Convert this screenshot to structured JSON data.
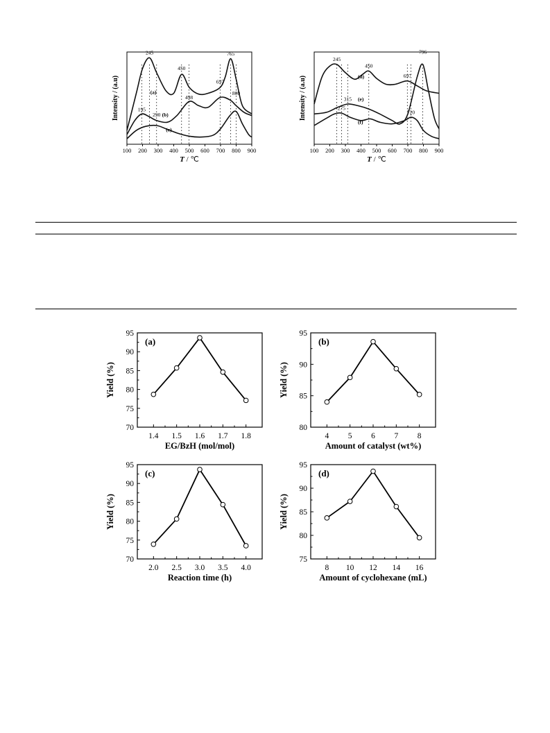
{
  "tpd_panels": [
    {
      "id": "left",
      "ylabel": "Intensity / (a.u)",
      "xlabel_italic": "T",
      "xlabel_rest": " / ℃",
      "xticks": [
        100,
        200,
        300,
        400,
        500,
        600,
        700,
        800,
        900
      ],
      "xlim": [
        100,
        900
      ],
      "curves": [
        {
          "label": "(a)",
          "label_at": [
            250,
            0.54
          ],
          "points": [
            [
              100,
              0.1
            ],
            [
              160,
              0.55
            ],
            [
              200,
              0.85
            ],
            [
              245,
              0.98
            ],
            [
              290,
              0.8
            ],
            [
              350,
              0.58
            ],
            [
              400,
              0.55
            ],
            [
              450,
              0.78
            ],
            [
              500,
              0.62
            ],
            [
              560,
              0.54
            ],
            [
              620,
              0.55
            ],
            [
              697,
              0.62
            ],
            [
              730,
              0.75
            ],
            [
              765,
              0.97
            ],
            [
              800,
              0.72
            ],
            [
              840,
              0.4
            ],
            [
              900,
              0.3
            ]
          ]
        },
        {
          "label": "(b)",
          "label_at": [
            325,
            0.27
          ],
          "points": [
            [
              100,
              0.05
            ],
            [
              150,
              0.22
            ],
            [
              195,
              0.3
            ],
            [
              240,
              0.27
            ],
            [
              290,
              0.22
            ],
            [
              360,
              0.2
            ],
            [
              420,
              0.28
            ],
            [
              498,
              0.45
            ],
            [
              560,
              0.4
            ],
            [
              620,
              0.38
            ],
            [
              697,
              0.5
            ],
            [
              760,
              0.47
            ],
            [
              800,
              0.4
            ],
            [
              850,
              0.32
            ],
            [
              900,
              0.28
            ]
          ]
        },
        {
          "label": "(c)",
          "label_at": [
            350,
            0.09
          ],
          "points": [
            [
              100,
              0.0
            ],
            [
              160,
              0.1
            ],
            [
              220,
              0.15
            ],
            [
              290,
              0.16
            ],
            [
              350,
              0.12
            ],
            [
              420,
              0.07
            ],
            [
              500,
              0.03
            ],
            [
              580,
              0.02
            ],
            [
              650,
              0.04
            ],
            [
              700,
              0.12
            ],
            [
              760,
              0.28
            ],
            [
              800,
              0.33
            ],
            [
              840,
              0.18
            ],
            [
              880,
              0.05
            ],
            [
              900,
              0.02
            ]
          ]
        }
      ],
      "peak_labels": [
        {
          "text": "245",
          "x": 245,
          "y": 1.02
        },
        {
          "text": "450",
          "x": 450,
          "y": 0.83
        },
        {
          "text": "697",
          "x": 697,
          "y": 0.67
        },
        {
          "text": "765",
          "x": 765,
          "y": 1.01
        },
        {
          "text": "800",
          "x": 800,
          "y": 0.53
        },
        {
          "text": "498",
          "x": 498,
          "y": 0.48
        },
        {
          "text": "195",
          "x": 195,
          "y": 0.33
        },
        {
          "text": "290",
          "x": 290,
          "y": 0.27
        }
      ],
      "dotted_x": [
        195,
        245,
        290,
        450,
        498,
        697,
        765,
        800
      ]
    },
    {
      "id": "right",
      "ylabel": "Intensity / (a.u)",
      "xlabel_italic": "T",
      "xlabel_rest": " / ℃",
      "xticks": [
        100,
        200,
        300,
        400,
        500,
        600,
        700,
        800,
        900
      ],
      "xlim": [
        100,
        900
      ],
      "curves": [
        {
          "label": "(d)",
          "label_at": [
            380,
            0.73
          ],
          "points": [
            [
              100,
              0.42
            ],
            [
              150,
              0.75
            ],
            [
              200,
              0.88
            ],
            [
              245,
              0.9
            ],
            [
              300,
              0.8
            ],
            [
              360,
              0.72
            ],
            [
              410,
              0.78
            ],
            [
              450,
              0.82
            ],
            [
              500,
              0.73
            ],
            [
              560,
              0.66
            ],
            [
              620,
              0.66
            ],
            [
              697,
              0.7
            ],
            [
              760,
              0.64
            ],
            [
              820,
              0.58
            ],
            [
              900,
              0.55
            ]
          ]
        },
        {
          "label": "(e)",
          "label_at": [
            380,
            0.46
          ],
          "points": [
            [
              100,
              0.3
            ],
            [
              180,
              0.32
            ],
            [
              250,
              0.38
            ],
            [
              315,
              0.42
            ],
            [
              380,
              0.4
            ],
            [
              450,
              0.36
            ],
            [
              520,
              0.3
            ],
            [
              600,
              0.22
            ],
            [
              650,
              0.18
            ],
            [
              700,
              0.3
            ],
            [
              760,
              0.75
            ],
            [
              796,
              0.9
            ],
            [
              830,
              0.6
            ],
            [
              870,
              0.25
            ],
            [
              900,
              0.12
            ]
          ]
        },
        {
          "label": "(f)",
          "label_at": [
            380,
            0.18
          ],
          "points": [
            [
              100,
              0.16
            ],
            [
              180,
              0.25
            ],
            [
              230,
              0.3
            ],
            [
              275,
              0.31
            ],
            [
              330,
              0.26
            ],
            [
              400,
              0.22
            ],
            [
              460,
              0.24
            ],
            [
              520,
              0.2
            ],
            [
              600,
              0.18
            ],
            [
              680,
              0.22
            ],
            [
              720,
              0.26
            ],
            [
              760,
              0.22
            ],
            [
              800,
              0.1
            ],
            [
              850,
              0.03
            ],
            [
              900,
              0.0
            ]
          ]
        }
      ],
      "peak_labels": [
        {
          "text": "245",
          "x": 245,
          "y": 0.94
        },
        {
          "text": "450",
          "x": 450,
          "y": 0.86
        },
        {
          "text": "697",
          "x": 697,
          "y": 0.74
        },
        {
          "text": "796",
          "x": 796,
          "y": 1.03
        },
        {
          "text": "315",
          "x": 315,
          "y": 0.46
        },
        {
          "text": "275",
          "x": 275,
          "y": 0.35
        },
        {
          "text": "720",
          "x": 720,
          "y": 0.3
        }
      ],
      "dotted_x": [
        245,
        275,
        315,
        450,
        697,
        720,
        796
      ]
    }
  ],
  "chart_data": [
    {
      "type": "line",
      "panel": "(a)",
      "xlabel": "EG/BzH (mol/mol)",
      "ylabel": "Yield (%)",
      "x": [
        1.4,
        1.5,
        1.6,
        1.7,
        1.8
      ],
      "values": [
        78.7,
        85.7,
        93.7,
        84.6,
        77.1
      ],
      "xticks": [
        "1.4",
        "1.5",
        "1.6",
        "1.7",
        "1.8"
      ],
      "xlim": [
        1.33,
        1.87
      ],
      "yticks": [
        70,
        75,
        80,
        85,
        90,
        95
      ],
      "ylim": [
        70,
        95
      ]
    },
    {
      "type": "line",
      "panel": "(b)",
      "xlabel": "Amount of catalyst (wt%)",
      "ylabel": "Yield (%)",
      "x": [
        4,
        5,
        6,
        7,
        8
      ],
      "values": [
        84.0,
        87.9,
        93.6,
        89.3,
        85.2
      ],
      "xticks": [
        "4",
        "5",
        "6",
        "7",
        "8"
      ],
      "xlim": [
        3.3,
        8.7
      ],
      "yticks": [
        80,
        85,
        90,
        95
      ],
      "ylim": [
        80,
        95
      ]
    },
    {
      "type": "line",
      "panel": "(c)",
      "xlabel": "Reaction time (h)",
      "ylabel": "Yield (%)",
      "x": [
        2.0,
        2.5,
        3.0,
        3.5,
        4.0
      ],
      "values": [
        73.9,
        80.6,
        93.7,
        84.4,
        73.5
      ],
      "xticks": [
        "2.0",
        "2.5",
        "3.0",
        "3.5",
        "4.0"
      ],
      "xlim": [
        1.65,
        4.35
      ],
      "yticks": [
        70,
        75,
        80,
        85,
        90,
        95
      ],
      "ylim": [
        70,
        95
      ]
    },
    {
      "type": "line",
      "panel": "(d)",
      "xlabel": "Amount of cyclohexane (mL)",
      "ylabel": "Yield (%)",
      "x": [
        8,
        10,
        12,
        14,
        16
      ],
      "values": [
        83.7,
        87.2,
        93.6,
        86.1,
        79.5
      ],
      "xticks": [
        "8",
        "10",
        "12",
        "14",
        "16"
      ],
      "xlim": [
        6.6,
        17.4
      ],
      "yticks": [
        75,
        80,
        85,
        90,
        95
      ],
      "ylim": [
        75,
        95
      ]
    }
  ]
}
